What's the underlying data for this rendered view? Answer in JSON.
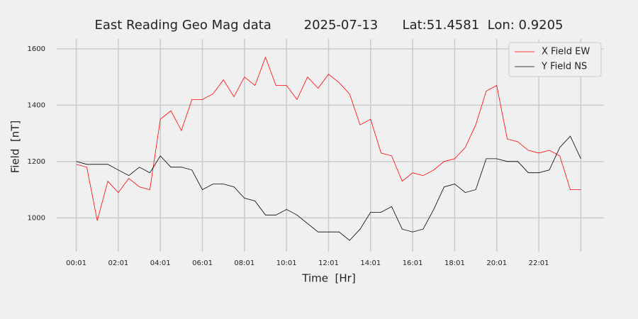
{
  "chart_data": {
    "type": "line",
    "title": "East Reading Geo Mag data        2025-07-13      Lat:51.4581  Lon: 0.9205",
    "x_label": "Time  [Hr]",
    "y_label": "Field  [nT]",
    "x": [
      0,
      0.5,
      1,
      1.5,
      2,
      2.5,
      3,
      3.5,
      4,
      4.5,
      5,
      5.5,
      6,
      6.5,
      7,
      7.5,
      8,
      8.5,
      9,
      9.5,
      10,
      10.5,
      11,
      11.5,
      12,
      12.5,
      13,
      13.5,
      14,
      14.5,
      15,
      15.5,
      16,
      16.5,
      17,
      17.5,
      18,
      18.5,
      19,
      19.5,
      20,
      20.5,
      21,
      21.5,
      22,
      22.5,
      23,
      23.5,
      24
    ],
    "series": [
      {
        "name": "X Field EW",
        "color": "#ff0000",
        "values": [
          1190,
          1180,
          990,
          1130,
          1090,
          1140,
          1110,
          1100,
          1350,
          1380,
          1310,
          1420,
          1420,
          1440,
          1490,
          1430,
          1500,
          1470,
          1570,
          1470,
          1470,
          1420,
          1500,
          1460,
          1510,
          1480,
          1440,
          1330,
          1350,
          1230,
          1220,
          1130,
          1160,
          1150,
          1170,
          1200,
          1210,
          1250,
          1330,
          1450,
          1470,
          1280,
          1270,
          1240,
          1230,
          1240,
          1220,
          1100,
          1100
        ]
      },
      {
        "name": "Y Field NS",
        "color": "#000000",
        "values": [
          1200,
          1190,
          1190,
          1190,
          1170,
          1150,
          1180,
          1160,
          1220,
          1180,
          1180,
          1170,
          1100,
          1120,
          1120,
          1110,
          1070,
          1060,
          1010,
          1010,
          1030,
          1010,
          980,
          950,
          950,
          950,
          920,
          960,
          1020,
          1020,
          1040,
          960,
          950,
          960,
          1030,
          1110,
          1120,
          1090,
          1100,
          1210,
          1210,
          1200,
          1200,
          1160,
          1160,
          1170,
          1250,
          1290,
          1210
        ]
      }
    ],
    "xlim": [
      -0.93,
      25.1
    ],
    "xticks": [
      {
        "value": 0,
        "label": "00:01"
      },
      {
        "value": 2,
        "label": "02:01"
      },
      {
        "value": 4,
        "label": "04:01"
      },
      {
        "value": 6,
        "label": "06:01"
      },
      {
        "value": 8,
        "label": "08:01"
      },
      {
        "value": 10,
        "label": "10:01"
      },
      {
        "value": 12,
        "label": "12:01"
      },
      {
        "value": 14,
        "label": "14:01"
      },
      {
        "value": 16,
        "label": "16:01"
      },
      {
        "value": 18,
        "label": "18:01"
      },
      {
        "value": 20,
        "label": "20:01"
      },
      {
        "value": 22,
        "label": "22:01"
      },
      {
        "value": 24,
        "label": null
      }
    ],
    "ylim": [
      880,
      1635
    ],
    "yticks": [
      1000,
      1200,
      1400,
      1600
    ],
    "grid": true,
    "legend": "upper right"
  }
}
